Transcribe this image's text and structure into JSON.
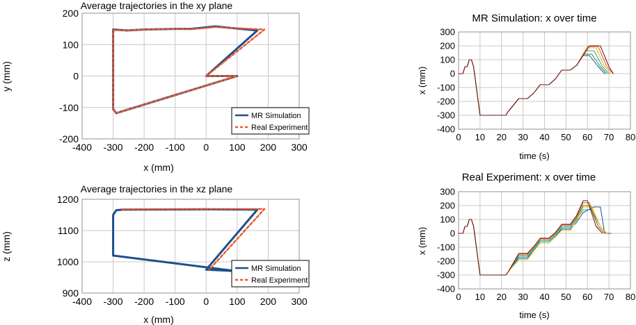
{
  "chart_data": [
    {
      "type": "line",
      "title": "Average trajectories in the xy plane",
      "xlabel": "x (mm)",
      "ylabel": "y (mm)",
      "xlim": [
        -400,
        300
      ],
      "ylim": [
        -200,
        200
      ],
      "xticks": [
        -400,
        -300,
        -200,
        -100,
        0,
        100,
        200,
        300
      ],
      "yticks": [
        -200,
        -100,
        0,
        100,
        200
      ],
      "grid": true,
      "legend_position": "bottom-right",
      "series": [
        {
          "name": "MR Simulation",
          "color": "#1f4e8c",
          "style": "solid",
          "x": [
            -300,
            -255,
            -200,
            -100,
            -50,
            0,
            30,
            60,
            165,
            0,
            100,
            -290,
            -300,
            -300,
            -300
          ],
          "y": [
            148,
            145,
            148,
            150,
            150,
            155,
            158,
            155,
            145,
            0,
            0,
            -118,
            -105,
            0,
            148
          ]
        },
        {
          "name": "Real Experiment",
          "color": "#e8582a",
          "style": "dashed",
          "x": [
            -300,
            -255,
            -200,
            -100,
            -50,
            0,
            30,
            60,
            188,
            0,
            100,
            -290,
            -300,
            -300,
            -300
          ],
          "y": [
            146,
            145,
            148,
            150,
            149,
            153,
            156,
            154,
            148,
            0,
            0,
            -118,
            -105,
            0,
            146
          ]
        }
      ]
    },
    {
      "type": "line",
      "title": "Average trajectories in the xz plane",
      "xlabel": "x (mm)",
      "ylabel": "z (mm)",
      "xlim": [
        -400,
        300
      ],
      "ylim": [
        900,
        1200
      ],
      "xticks": [
        -400,
        -300,
        -200,
        -100,
        0,
        100,
        200,
        300
      ],
      "yticks": [
        900,
        1000,
        1100,
        1200
      ],
      "grid": true,
      "legend_position": "bottom-right",
      "series": [
        {
          "name": "MR Simulation",
          "color": "#1f4e8c",
          "style": "solid",
          "x": [
            -300,
            -300,
            -290,
            -270,
            0,
            165,
            0,
            100,
            -300,
            -300
          ],
          "y": [
            1025,
            1150,
            1165,
            1167,
            1168,
            1167,
            975,
            970,
            1020,
            1025
          ]
        },
        {
          "name": "Real Experiment",
          "color": "#e8582a",
          "style": "dashed",
          "x": [
            -270,
            0,
            188,
            10
          ],
          "y": [
            1168,
            1169,
            1169,
            975
          ]
        }
      ]
    },
    {
      "type": "line",
      "title": "MR Simulation: x over time",
      "xlabel": "time (s)",
      "ylabel": "x (mm)",
      "xlim": [
        0,
        80
      ],
      "ylim": [
        -400,
        300
      ],
      "xticks": [
        0,
        10,
        20,
        30,
        40,
        50,
        60,
        70,
        80
      ],
      "yticks": [
        -400,
        -300,
        -200,
        -100,
        0,
        100,
        200,
        300
      ],
      "grid": true,
      "series": [
        {
          "color": "#1f4e8c",
          "x": [
            0,
            2,
            3,
            4,
            5,
            6,
            7,
            10,
            22,
            23,
            28,
            32,
            35,
            38,
            42,
            45,
            48,
            52,
            55,
            58,
            61,
            65,
            68
          ],
          "y": [
            0,
            0,
            50,
            50,
            100,
            100,
            50,
            -300,
            -300,
            -275,
            -180,
            -180,
            -140,
            -80,
            -80,
            -40,
            25,
            25,
            60,
            130,
            130,
            50,
            0
          ]
        },
        {
          "color": "#2a8c2a",
          "x": [
            0,
            2,
            3,
            4,
            5,
            6,
            7,
            10,
            22,
            23,
            28,
            32,
            35,
            38,
            42,
            45,
            48,
            52,
            55,
            58,
            62,
            66,
            69
          ],
          "y": [
            0,
            0,
            50,
            50,
            100,
            100,
            50,
            -300,
            -300,
            -275,
            -180,
            -180,
            -140,
            -80,
            -80,
            -40,
            25,
            25,
            60,
            140,
            140,
            50,
            0
          ]
        },
        {
          "color": "#19a0c8",
          "x": [
            0,
            2,
            3,
            4,
            5,
            6,
            7,
            10,
            22,
            23,
            28,
            32,
            35,
            38,
            42,
            45,
            48,
            52,
            55,
            59,
            63,
            67,
            70
          ],
          "y": [
            0,
            0,
            50,
            50,
            100,
            100,
            50,
            -300,
            -300,
            -275,
            -180,
            -180,
            -140,
            -80,
            -80,
            -40,
            25,
            25,
            60,
            165,
            165,
            50,
            0
          ]
        },
        {
          "color": "#e8c000",
          "x": [
            0,
            2,
            3,
            4,
            5,
            6,
            7,
            10,
            22,
            23,
            28,
            32,
            35,
            38,
            42,
            45,
            48,
            52,
            55,
            60,
            64,
            68,
            71
          ],
          "y": [
            0,
            0,
            50,
            50,
            100,
            100,
            50,
            -300,
            -300,
            -275,
            -180,
            -180,
            -140,
            -80,
            -80,
            -40,
            25,
            25,
            60,
            185,
            185,
            50,
            0
          ]
        },
        {
          "color": "#e8582a",
          "x": [
            0,
            2,
            3,
            4,
            5,
            6,
            7,
            10,
            22,
            23,
            28,
            32,
            35,
            38,
            42,
            45,
            48,
            52,
            55,
            60,
            65,
            69,
            72
          ],
          "y": [
            0,
            0,
            50,
            50,
            100,
            100,
            50,
            -300,
            -300,
            -275,
            -180,
            -180,
            -140,
            -80,
            -80,
            -40,
            25,
            25,
            60,
            195,
            195,
            50,
            0
          ]
        },
        {
          "color": "#6b1010",
          "x": [
            0,
            2,
            3,
            4,
            5,
            6,
            7,
            10,
            22,
            23,
            28,
            32,
            35,
            38,
            42,
            45,
            48,
            52,
            55,
            61,
            66,
            70,
            72
          ],
          "y": [
            0,
            0,
            50,
            50,
            100,
            100,
            50,
            -300,
            -300,
            -275,
            -180,
            -180,
            -140,
            -80,
            -80,
            -40,
            25,
            25,
            60,
            200,
            200,
            50,
            0
          ]
        }
      ]
    },
    {
      "type": "line",
      "title": "Real Experiment: x over time",
      "xlabel": "time (s)",
      "ylabel": "x (mm)",
      "xlim": [
        0,
        80
      ],
      "ylim": [
        -400,
        300
      ],
      "xticks": [
        0,
        10,
        20,
        30,
        40,
        50,
        60,
        70,
        80
      ],
      "yticks": [
        -400,
        -300,
        -200,
        -100,
        0,
        100,
        200,
        300
      ],
      "grid": true,
      "series": [
        {
          "color": "#1f4e8c",
          "x": [
            0,
            2,
            3,
            4,
            5,
            6,
            7,
            10,
            22,
            23,
            28,
            32,
            35,
            38,
            42,
            45,
            48,
            52,
            55,
            58,
            63,
            66,
            68,
            71
          ],
          "y": [
            0,
            0,
            50,
            50,
            100,
            100,
            50,
            -300,
            -300,
            -280,
            -180,
            -180,
            -120,
            -60,
            -60,
            -20,
            30,
            30,
            80,
            150,
            190,
            190,
            0,
            0
          ]
        },
        {
          "color": "#2a8c2a",
          "x": [
            0,
            2,
            3,
            4,
            5,
            6,
            7,
            10,
            22,
            23,
            28,
            32,
            35,
            38,
            42,
            45,
            48,
            52,
            55,
            58,
            61,
            65,
            68
          ],
          "y": [
            0,
            0,
            50,
            50,
            100,
            100,
            50,
            -300,
            -300,
            -280,
            -160,
            -160,
            -110,
            -50,
            -50,
            -10,
            50,
            50,
            110,
            200,
            200,
            50,
            0
          ]
        },
        {
          "color": "#19a0c8",
          "x": [
            0,
            2,
            3,
            4,
            5,
            6,
            7,
            10,
            22,
            23,
            28,
            32,
            35,
            38,
            42,
            45,
            48,
            52,
            55,
            58,
            62,
            66,
            69
          ],
          "y": [
            0,
            0,
            50,
            50,
            100,
            100,
            50,
            -300,
            -300,
            -280,
            -170,
            -170,
            -120,
            -60,
            -60,
            -20,
            40,
            40,
            100,
            170,
            170,
            50,
            0
          ]
        },
        {
          "color": "#e8c000",
          "x": [
            0,
            2,
            3,
            4,
            5,
            6,
            7,
            10,
            22,
            23,
            28,
            32,
            35,
            38,
            42,
            45,
            48,
            52,
            55,
            58,
            62,
            66,
            69
          ],
          "y": [
            0,
            0,
            50,
            50,
            100,
            100,
            50,
            -300,
            -300,
            -280,
            -190,
            -190,
            -130,
            -70,
            -70,
            -30,
            20,
            20,
            90,
            190,
            190,
            50,
            0
          ]
        },
        {
          "color": "#e8582a",
          "x": [
            0,
            2,
            3,
            4,
            5,
            6,
            7,
            10,
            22,
            23,
            28,
            32,
            35,
            38,
            42,
            45,
            48,
            52,
            55,
            58,
            61,
            65,
            68
          ],
          "y": [
            0,
            0,
            50,
            50,
            100,
            100,
            50,
            -300,
            -300,
            -280,
            -150,
            -150,
            -100,
            -40,
            -40,
            0,
            60,
            60,
            120,
            220,
            220,
            50,
            0
          ]
        },
        {
          "color": "#6b1010",
          "x": [
            0,
            2,
            3,
            4,
            5,
            6,
            7,
            10,
            22,
            23,
            28,
            32,
            35,
            38,
            42,
            45,
            48,
            52,
            55,
            58,
            60,
            64,
            67
          ],
          "y": [
            0,
            0,
            50,
            50,
            100,
            100,
            50,
            -300,
            -300,
            -280,
            -145,
            -145,
            -95,
            -35,
            -35,
            5,
            65,
            65,
            130,
            235,
            235,
            50,
            0
          ]
        }
      ]
    }
  ]
}
